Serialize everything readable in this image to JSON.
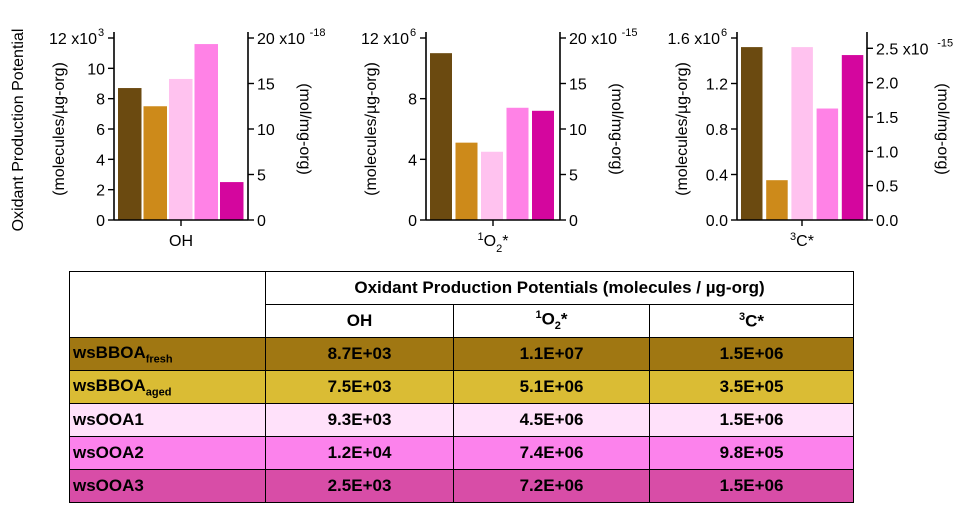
{
  "figure_ylabel": "Oxidant Production Potential",
  "colors": {
    "wsBBOA_fresh": "#6b4a10",
    "wsBBOA_aged": "#cd8a1a",
    "wsOOA1": "#ffc2ef",
    "wsOOA2": "#ff82e6",
    "wsOOA3": "#d4069e"
  },
  "chart_data": [
    {
      "type": "bar",
      "category_label": "OH",
      "series": [
        {
          "name": "wsBBOAfresh",
          "value": 8700.0
        },
        {
          "name": "wsBBOAaged",
          "value": 7500.0
        },
        {
          "name": "wsOOA1",
          "value": 9300.0
        },
        {
          "name": "wsOOA2",
          "value": 11600.0
        },
        {
          "name": "wsOOA3",
          "value": 2500.0
        }
      ],
      "left_axis": {
        "label": "(molecules/µg-org)",
        "ylim": [
          0,
          12000
        ],
        "ticks": [
          0,
          2,
          4,
          6,
          8,
          10,
          12
        ],
        "tick_labels": [
          "0",
          "2",
          "4",
          "6",
          "8",
          "10",
          "12 x10"
        ],
        "exponent": "3"
      },
      "right_axis": {
        "label": "(mol/mg-org)",
        "ylim": [
          0,
          2e-17
        ],
        "ticks": [
          0,
          5,
          10,
          15,
          20
        ],
        "tick_labels": [
          "0",
          "5",
          "10",
          "15",
          "20 x10"
        ],
        "exponent": "-18"
      }
    },
    {
      "type": "bar",
      "category_label_base": "O",
      "category_label_pre_sup": "1",
      "category_label_sub": "2",
      "category_label_post": "*",
      "series": [
        {
          "name": "wsBBOAfresh",
          "value": 11000000.0
        },
        {
          "name": "wsBBOAaged",
          "value": 5100000.0
        },
        {
          "name": "wsOOA1",
          "value": 4500000.0
        },
        {
          "name": "wsOOA2",
          "value": 7400000.0
        },
        {
          "name": "wsOOA3",
          "value": 7200000.0
        }
      ],
      "left_axis": {
        "label": "(molecules/µg-org)",
        "ylim": [
          0,
          12000000.0
        ],
        "ticks": [
          0,
          4,
          8,
          12
        ],
        "tick_labels": [
          "0",
          "4",
          "8",
          "12 x10"
        ],
        "exponent": "6"
      },
      "right_axis": {
        "label": "(mol/mg-org)",
        "ylim": [
          0,
          2e-14
        ],
        "ticks": [
          0,
          5,
          10,
          15,
          20
        ],
        "tick_labels": [
          "0",
          "5",
          "10",
          "15",
          "20 x10"
        ],
        "exponent": "-15"
      }
    },
    {
      "type": "bar",
      "category_label_base": "C*",
      "category_label_pre_sup": "3",
      "series": [
        {
          "name": "wsBBOAfresh",
          "value": 1520000.0
        },
        {
          "name": "wsBBOAaged",
          "value": 350000.0
        },
        {
          "name": "wsOOA1",
          "value": 1520000.0
        },
        {
          "name": "wsOOA2",
          "value": 980000.0
        },
        {
          "name": "wsOOA3",
          "value": 1450000.0
        }
      ],
      "left_axis": {
        "label": "(molecules/µg-org)",
        "ylim": [
          0,
          1600000.0
        ],
        "ticks": [
          0,
          0.4,
          0.8,
          1.2,
          1.6
        ],
        "tick_labels": [
          "0.0",
          "0.4",
          "0.8",
          "1.2",
          "1.6 x10"
        ],
        "exponent": "6"
      },
      "right_axis": {
        "label": "(mol/mg-org)",
        "ylim": [
          0,
          2.65e-15
        ],
        "ticks": [
          0,
          0.5,
          1.0,
          1.5,
          2.0,
          2.5
        ],
        "tick_labels": [
          "0.0",
          "0.5",
          "1.0",
          "1.5",
          "2.0",
          "2.5 x10"
        ],
        "exponent": "-15"
      }
    }
  ],
  "table": {
    "header_title": "Oxidant Production Potentials (molecules / µg-org)",
    "columns": [
      "OH",
      "O2*",
      "C*"
    ],
    "col_sup": [
      "",
      "1",
      "3"
    ],
    "col_sub": [
      "",
      "2",
      ""
    ],
    "rows": [
      {
        "label": "wsBBOA",
        "sub": "fresh",
        "values": [
          "8.7E+03",
          "1.1E+07",
          "1.5E+06"
        ],
        "bg": "#a07712"
      },
      {
        "label": "wsBBOA",
        "sub": "aged",
        "values": [
          "7.5E+03",
          "5.1E+06",
          "3.5E+05"
        ],
        "bg": "#dabc34"
      },
      {
        "label": "wsOOA1",
        "sub": "",
        "values": [
          "9.3E+03",
          "4.5E+06",
          "1.5E+06"
        ],
        "bg": "#ffe1fa"
      },
      {
        "label": "wsOOA2",
        "sub": "",
        "values": [
          "1.2E+04",
          "7.4E+06",
          "9.8E+05"
        ],
        "bg": "#fc82ec"
      },
      {
        "label": "wsOOA3",
        "sub": "",
        "values": [
          "2.5E+03",
          "7.2E+06",
          "1.5E+06"
        ],
        "bg": "#d84da7"
      }
    ]
  }
}
